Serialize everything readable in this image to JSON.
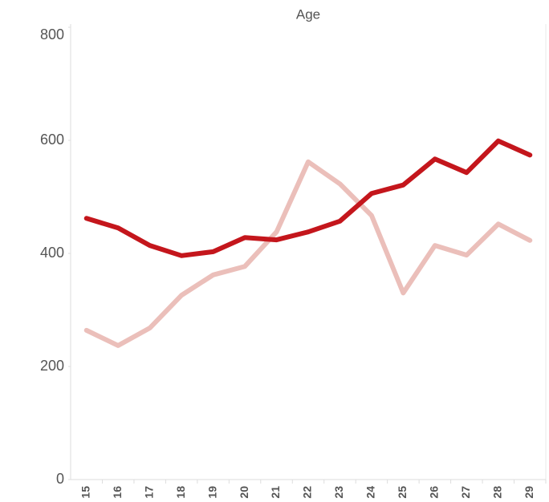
{
  "chart_data": {
    "type": "line",
    "title": "Age",
    "categories": [
      "15",
      "16",
      "17",
      "18",
      "19",
      "20",
      "21",
      "22",
      "23",
      "24",
      "25",
      "26",
      "27",
      "28",
      "29"
    ],
    "series": [
      {
        "color": "#c4161c",
        "values": [
          462,
          445,
          414,
          396,
          403,
          428,
          424,
          438,
          457,
          506,
          521,
          567,
          543,
          599,
          574
        ]
      },
      {
        "color": "#ebbfba",
        "values": [
          264,
          237,
          268,
          326,
          362,
          377,
          438,
          562,
          523,
          467,
          330,
          414,
          397,
          452,
          423
        ]
      }
    ],
    "ylim": [
      0,
      800
    ],
    "yticks": [
      0,
      200,
      400,
      600,
      800
    ],
    "grid": false
  }
}
